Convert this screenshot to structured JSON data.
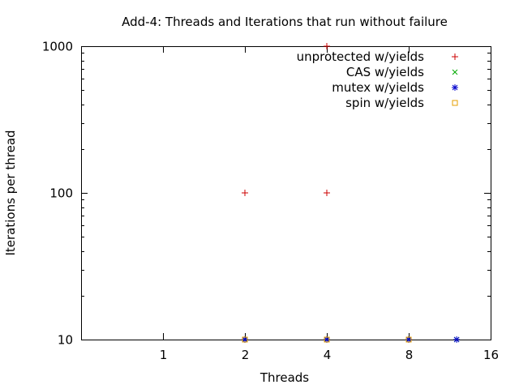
{
  "chart_data": {
    "type": "scatter",
    "title": "Add-4: Threads and Iterations that run without failure",
    "xlabel": "Threads",
    "ylabel": "Iterations per thread",
    "x_scale": "log2",
    "y_scale": "log10",
    "xlim": [
      0.5,
      16
    ],
    "ylim": [
      10,
      1000
    ],
    "x_ticks": [
      {
        "value": 1,
        "label": "1"
      },
      {
        "value": 2,
        "label": "2"
      },
      {
        "value": 4,
        "label": "4"
      },
      {
        "value": 8,
        "label": "8"
      },
      {
        "value": 16,
        "label": "16"
      }
    ],
    "y_ticks": [
      {
        "value": 10,
        "label": "10"
      },
      {
        "value": 100,
        "label": "100"
      },
      {
        "value": 1000,
        "label": "1000"
      }
    ],
    "grid": false,
    "legend_position": "top-right",
    "series": [
      {
        "name": "unprotected w/yields",
        "marker": "plus",
        "color": "#cc0000",
        "points": [
          [
            2,
            10
          ],
          [
            2,
            100
          ],
          [
            4,
            10
          ],
          [
            4,
            100
          ],
          [
            4,
            1000
          ]
        ]
      },
      {
        "name": "CAS w/yields",
        "marker": "cross",
        "color": "#00aa00",
        "points": [
          [
            2,
            10
          ],
          [
            4,
            10
          ],
          [
            8,
            10
          ],
          [
            12,
            10
          ]
        ]
      },
      {
        "name": "mutex w/yields",
        "marker": "star",
        "color": "#0000cc",
        "points": [
          [
            2,
            10
          ],
          [
            4,
            10
          ],
          [
            8,
            10
          ],
          [
            12,
            10
          ]
        ]
      },
      {
        "name": "spin w/yields",
        "marker": "square",
        "color": "#e69f00",
        "points": [
          [
            2,
            10
          ],
          [
            4,
            10
          ],
          [
            8,
            10
          ]
        ]
      }
    ]
  }
}
